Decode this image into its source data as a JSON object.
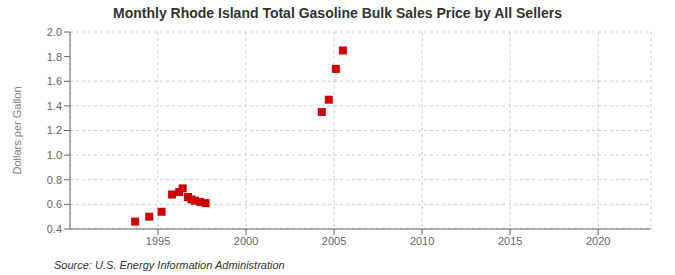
{
  "chart_data": {
    "type": "scatter",
    "title": "Monthly Rhode Island Total Gasoline Bulk Sales Price by All Sellers",
    "ylabel": "Dollars per Gallon",
    "annotation": "Source: U.S. Energy Information Administration",
    "x": [
      1993.7,
      1994.5,
      1995.2,
      1995.8,
      1996.2,
      1996.4,
      1996.7,
      1996.9,
      1997.1,
      1997.4,
      1997.7,
      2004.3,
      2004.7,
      2005.1,
      2005.5
    ],
    "values": [
      0.46,
      0.5,
      0.54,
      0.68,
      0.7,
      0.73,
      0.66,
      0.64,
      0.63,
      0.62,
      0.61,
      1.35,
      1.45,
      1.7,
      1.85
    ],
    "color": "#cc0000",
    "marker": "square",
    "xlim": [
      1990,
      2023
    ],
    "ylim": [
      0.4,
      2.0
    ],
    "xticks": [
      1995,
      2000,
      2005,
      2010,
      2015,
      2020
    ],
    "yticks": [
      0.4,
      0.6,
      0.8,
      {
        "value": 1.0,
        "label": "1.0"
      },
      1.2,
      1.4,
      1.6,
      1.8,
      {
        "value": 2.0,
        "label": "2.0"
      }
    ],
    "grid": true
  }
}
